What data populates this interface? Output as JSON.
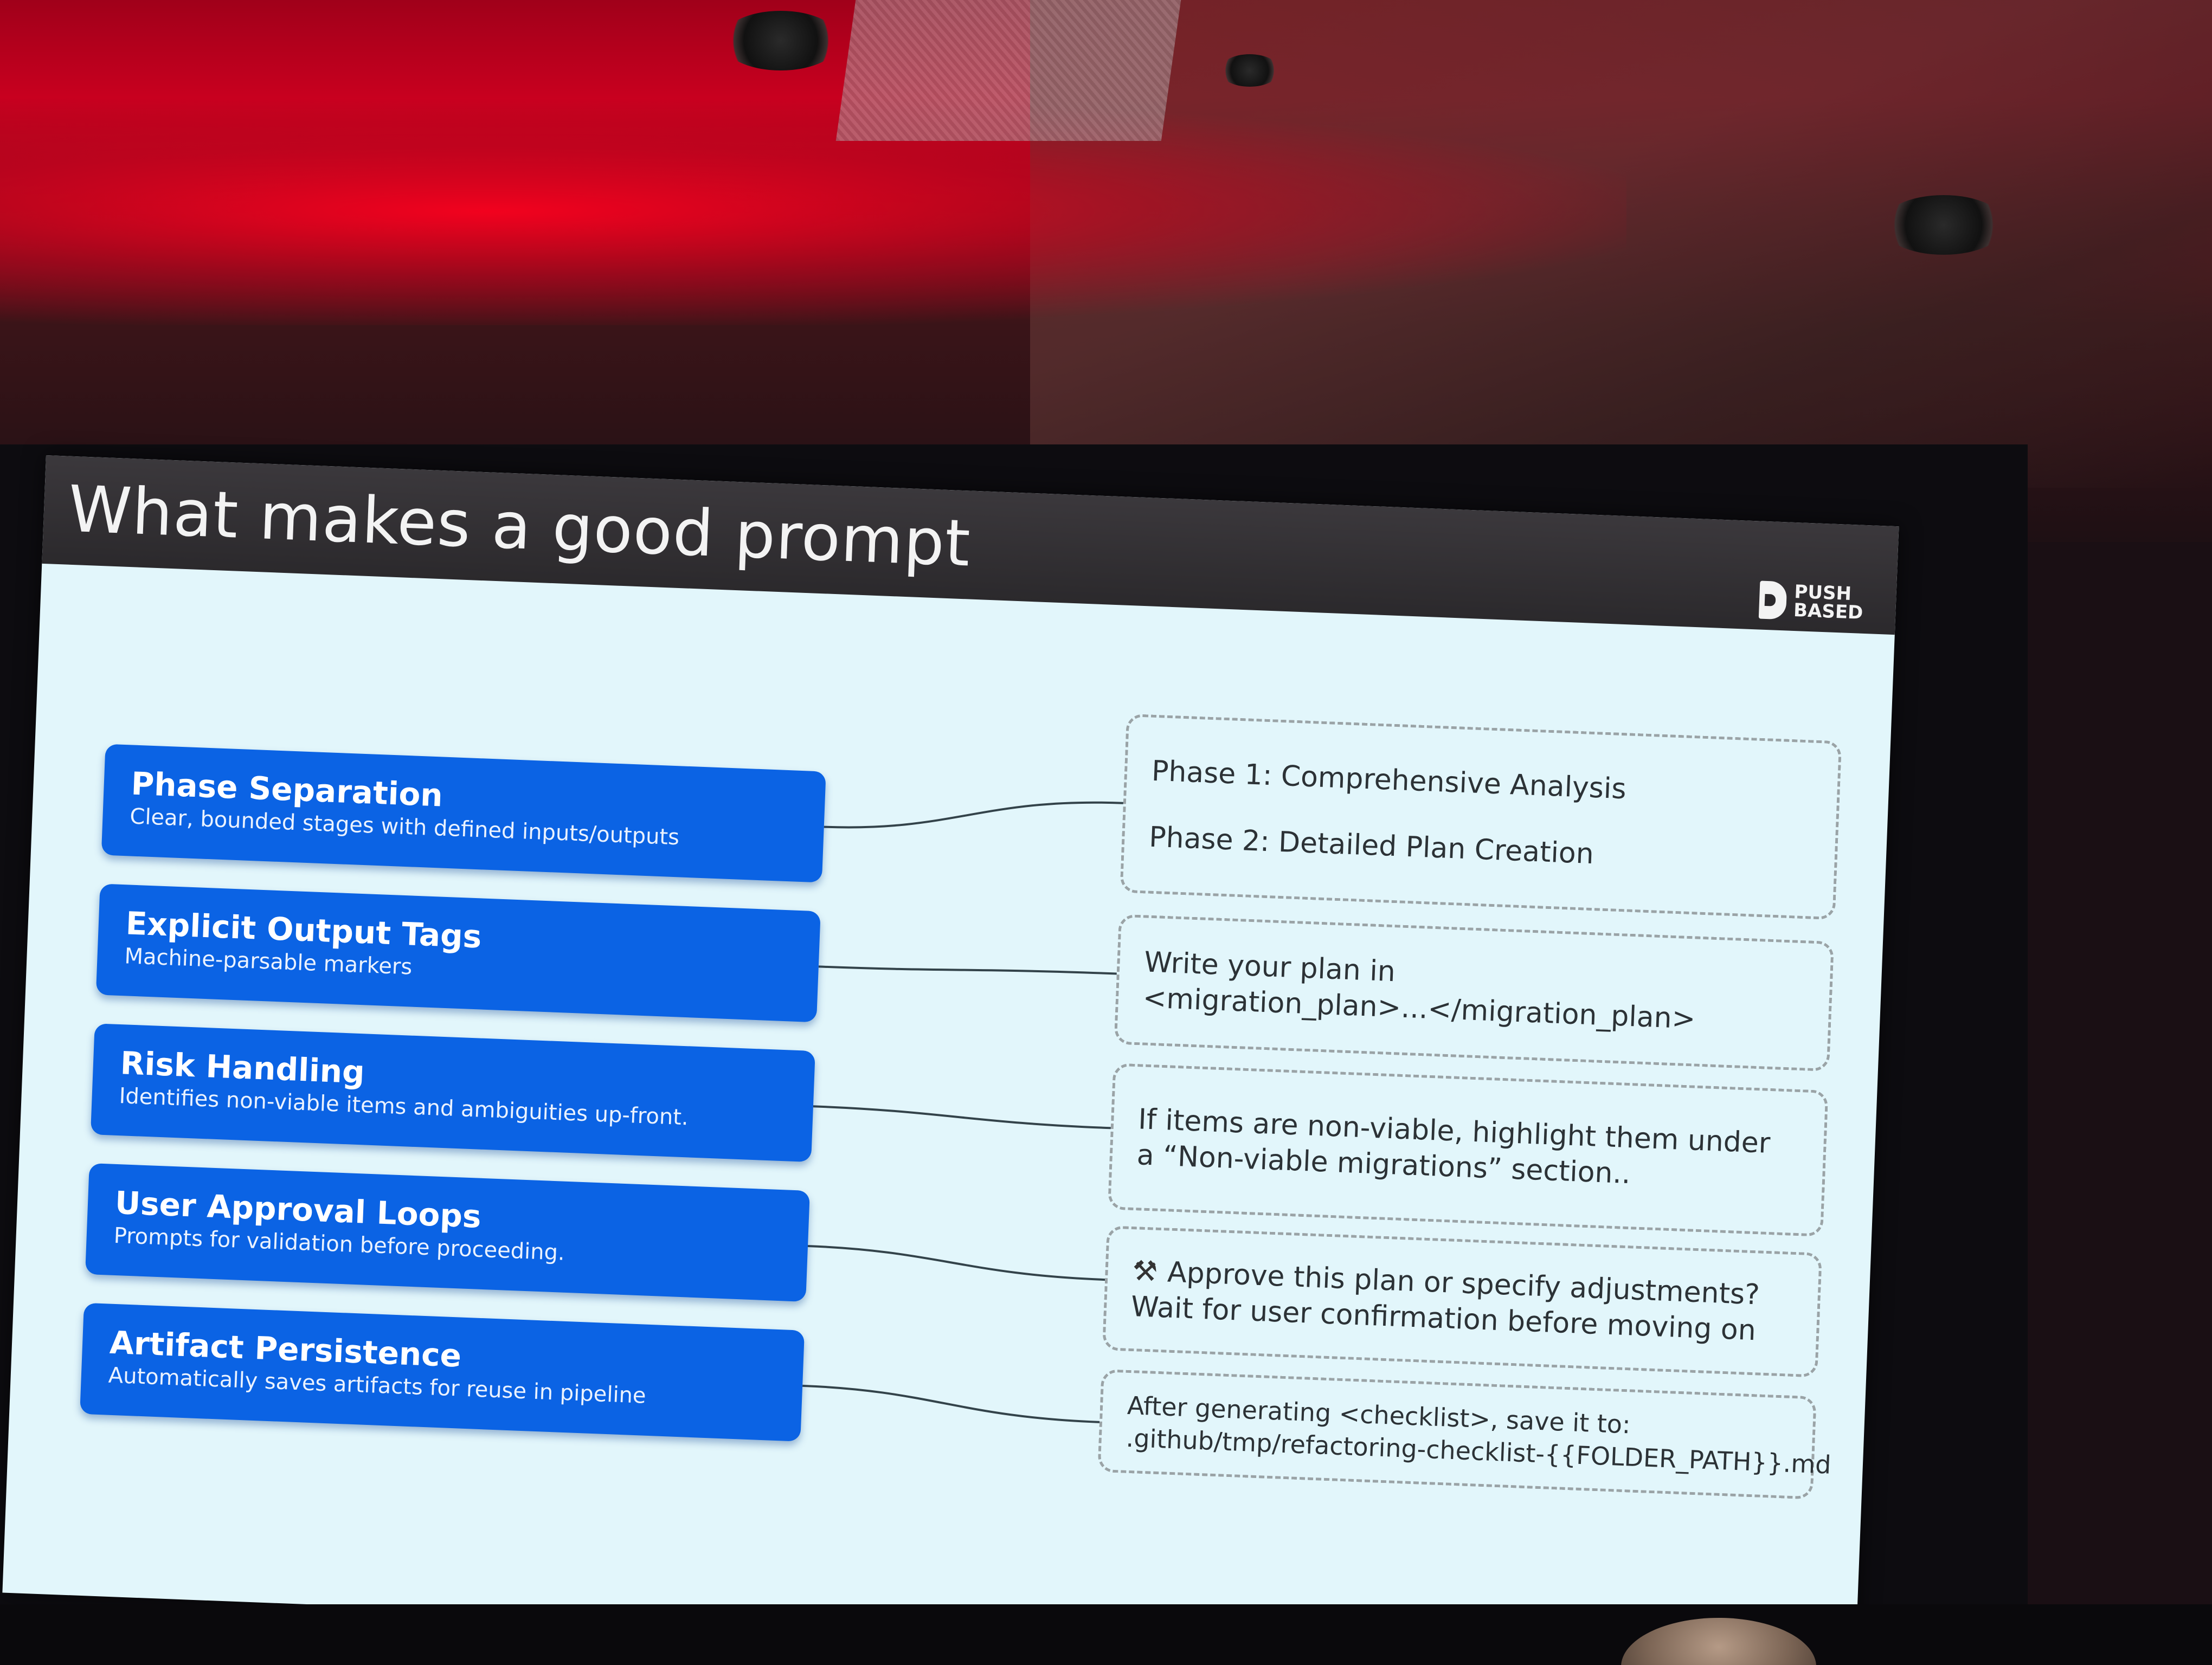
{
  "slide": {
    "title": "What makes a good prompt",
    "logo": {
      "line1": "PUSH",
      "line2": "BASED"
    }
  },
  "features": [
    {
      "title": "Phase Separation",
      "description": "Clear, bounded stages with defined inputs/outputs"
    },
    {
      "title": "Explicit Output Tags",
      "description": "Machine-parsable markers"
    },
    {
      "title": "Risk Handling",
      "description": "Identifies non-viable items and ambiguities up-front."
    },
    {
      "title": "User Approval Loops",
      "description": "Prompts for validation before proceeding."
    },
    {
      "title": "Artifact Persistence",
      "description": "Automatically saves artifacts for reuse in pipeline"
    }
  ],
  "examples": [
    {
      "line1": "Phase 1: Comprehensive Analysis",
      "line2": "Phase 2: Detailed Plan Creation"
    },
    {
      "line1": "Write your plan in",
      "line2": "<migration_plan>...</migration_plan>"
    },
    {
      "line1": "If items are non-viable, highlight them under",
      "line2": "a “Non-viable migrations” section.."
    },
    {
      "icon": "hammer-wrench-icon",
      "line1": "Approve this plan or specify adjustments?",
      "line2": "Wait for user confirmation before moving on"
    },
    {
      "line1": "After generating <checklist>, save it to:",
      "line2": ".github/tmp/refactoring-checklist-{{FOLDER_PATH}}.md"
    }
  ],
  "colors": {
    "slide_background": "#e2f6fb",
    "title_bar": "#2b292c",
    "feature_box": "#0b63e4",
    "room_red": "#c8001f"
  }
}
